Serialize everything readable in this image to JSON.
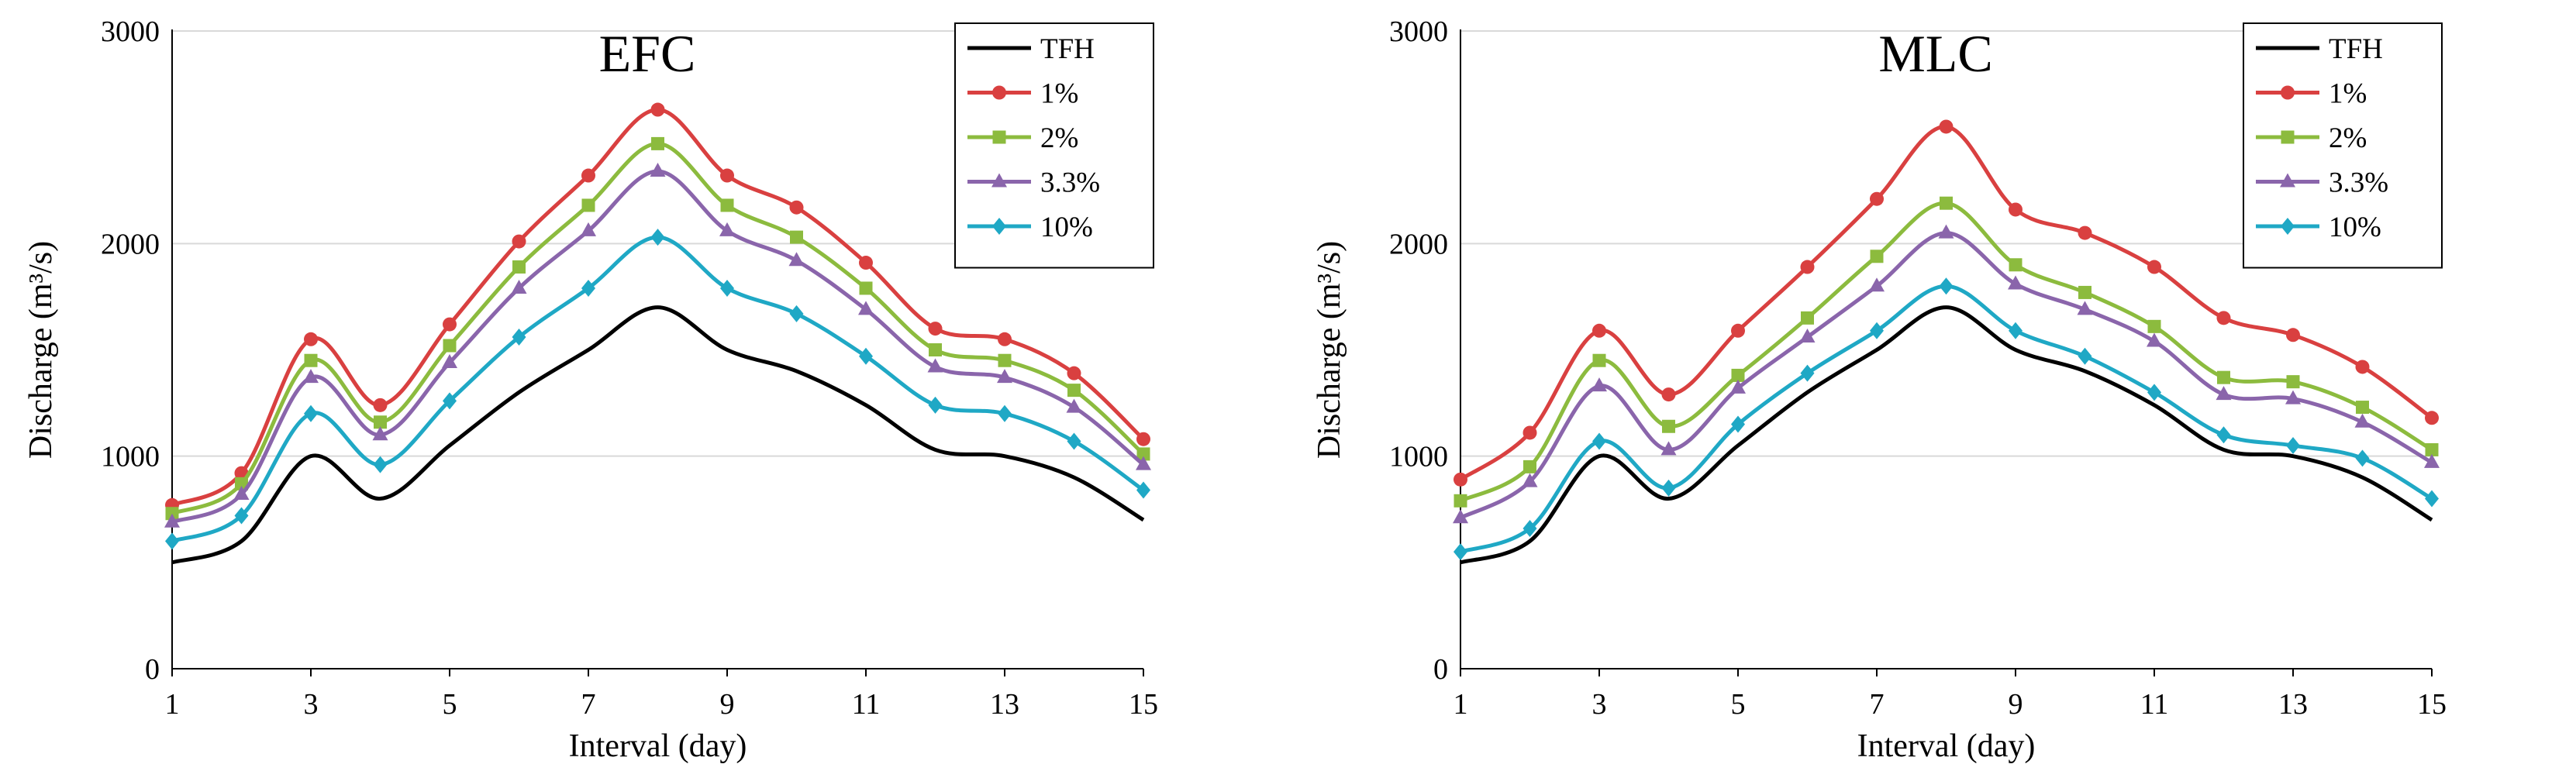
{
  "chart_data": [
    {
      "type": "line",
      "title": "EFC",
      "xlabel": "Interval (day)",
      "ylabel": "Discharge (m³/s)",
      "x": [
        1,
        2,
        3,
        4,
        5,
        6,
        7,
        8,
        9,
        10,
        11,
        12,
        13,
        14,
        15
      ],
      "xticks": [
        "1",
        "3",
        "5",
        "7",
        "9",
        "11",
        "13",
        "15"
      ],
      "xlim": [
        1,
        15
      ],
      "ylim": [
        0,
        3000
      ],
      "yticks": [
        "0",
        "1000",
        "2000",
        "3000"
      ],
      "grid": "horizontal",
      "legend_position": "top-right",
      "series": [
        {
          "name": "TFH",
          "color": "#000000",
          "marker": "none",
          "values": [
            500,
            600,
            1000,
            800,
            1050,
            1300,
            1500,
            1700,
            1500,
            1400,
            1240,
            1030,
            1000,
            900,
            700
          ]
        },
        {
          "name": "1%",
          "color": "#d94040",
          "marker": "circle",
          "values": [
            770,
            920,
            1550,
            1240,
            1620,
            2010,
            2320,
            2630,
            2320,
            2170,
            1910,
            1600,
            1550,
            1390,
            1080
          ]
        },
        {
          "name": "2%",
          "color": "#8cbb3e",
          "marker": "square",
          "values": [
            730,
            870,
            1450,
            1160,
            1520,
            1890,
            2180,
            2470,
            2180,
            2030,
            1790,
            1500,
            1450,
            1310,
            1010
          ]
        },
        {
          "name": "3.3%",
          "color": "#8a65ab",
          "marker": "triangle",
          "values": [
            690,
            820,
            1370,
            1100,
            1440,
            1790,
            2060,
            2340,
            2060,
            1920,
            1690,
            1420,
            1370,
            1230,
            960
          ]
        },
        {
          "name": "10%",
          "color": "#1fa8c5",
          "marker": "diamond",
          "values": [
            600,
            720,
            1200,
            960,
            1260,
            1560,
            1790,
            2030,
            1790,
            1670,
            1470,
            1240,
            1200,
            1070,
            840
          ]
        }
      ]
    },
    {
      "type": "line",
      "title": "MLC",
      "xlabel": "Interval (day)",
      "ylabel": "Discharge (m³/s)",
      "x": [
        1,
        2,
        3,
        4,
        5,
        6,
        7,
        8,
        9,
        10,
        11,
        12,
        13,
        14,
        15
      ],
      "xticks": [
        "1",
        "3",
        "5",
        "7",
        "9",
        "11",
        "13",
        "15"
      ],
      "xlim": [
        1,
        15
      ],
      "ylim": [
        0,
        3000
      ],
      "yticks": [
        "0",
        "1000",
        "2000",
        "3000"
      ],
      "grid": "horizontal",
      "legend_position": "top-right",
      "series": [
        {
          "name": "TFH",
          "color": "#000000",
          "marker": "none",
          "values": [
            500,
            600,
            1000,
            800,
            1050,
            1300,
            1500,
            1700,
            1500,
            1400,
            1240,
            1030,
            1000,
            900,
            700
          ]
        },
        {
          "name": "1%",
          "color": "#d94040",
          "marker": "circle",
          "values": [
            890,
            1110,
            1590,
            1290,
            1590,
            1890,
            2210,
            2550,
            2160,
            2050,
            1890,
            1650,
            1570,
            1420,
            1180
          ]
        },
        {
          "name": "2%",
          "color": "#8cbb3e",
          "marker": "square",
          "values": [
            790,
            950,
            1450,
            1140,
            1380,
            1650,
            1940,
            2190,
            1900,
            1770,
            1610,
            1370,
            1350,
            1230,
            1030
          ]
        },
        {
          "name": "3.3%",
          "color": "#8a65ab",
          "marker": "triangle",
          "values": [
            710,
            880,
            1330,
            1030,
            1320,
            1560,
            1800,
            2050,
            1810,
            1690,
            1540,
            1290,
            1270,
            1160,
            970
          ]
        },
        {
          "name": "10%",
          "color": "#1fa8c5",
          "marker": "diamond",
          "values": [
            550,
            660,
            1070,
            850,
            1150,
            1390,
            1590,
            1800,
            1590,
            1470,
            1300,
            1100,
            1050,
            990,
            800
          ]
        }
      ]
    }
  ]
}
